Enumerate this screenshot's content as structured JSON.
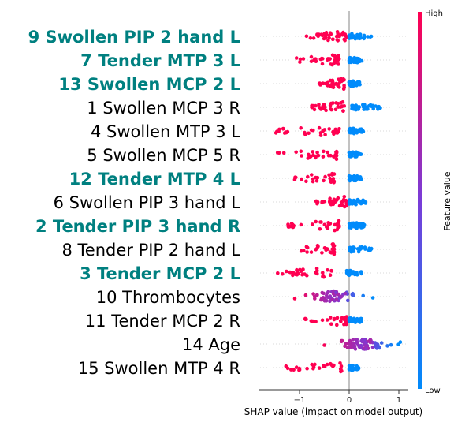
{
  "chart_data": {
    "type": "scatter",
    "subtype": "shap-beeswarm",
    "xlabel": "SHAP value (impact on model output)",
    "xticks": [
      -1,
      0,
      1
    ],
    "xtick_labels": [
      "−1",
      "0",
      "1"
    ],
    "xlim": [
      -1.8,
      1.2
    ],
    "colorbar": {
      "label": "Feature value",
      "high": "High",
      "low": "Low",
      "colors": {
        "high": "#ff0051",
        "low": "#008bfb",
        "mid": "#7a3cd8"
      }
    },
    "highlight_color": "#008080",
    "features": [
      {
        "label": "9 Swollen PIP 2 hand L",
        "highlighted": true,
        "high": {
          "min": -0.9,
          "max": -0.05,
          "n": 40
        },
        "low": {
          "min": 0.0,
          "max": 0.45,
          "n": 36
        }
      },
      {
        "label": "7 Tender MTP 3 L",
        "highlighted": true,
        "high": {
          "min": -1.1,
          "max": -0.2,
          "n": 34
        },
        "low": {
          "min": 0.0,
          "max": 0.3,
          "n": 36
        }
      },
      {
        "label": "13 Swollen MCP 2 L",
        "highlighted": true,
        "high": {
          "min": -0.6,
          "max": -0.1,
          "n": 36
        },
        "low": {
          "min": 0.0,
          "max": 0.25,
          "n": 34
        }
      },
      {
        "label": "1 Swollen MCP 3 R",
        "highlighted": false,
        "high": {
          "min": -0.8,
          "max": -0.1,
          "n": 34
        },
        "low": {
          "min": 0.05,
          "max": 0.7,
          "n": 40
        }
      },
      {
        "label": "4 Swollen MTP 3 L",
        "highlighted": false,
        "high": {
          "min": -1.5,
          "max": -0.2,
          "n": 32
        },
        "low": {
          "min": 0.0,
          "max": 0.3,
          "n": 34
        }
      },
      {
        "label": "5 Swollen MCP 5 R",
        "highlighted": false,
        "high": {
          "min": -1.7,
          "max": -0.25,
          "n": 30
        },
        "low": {
          "min": 0.0,
          "max": 0.25,
          "n": 34
        }
      },
      {
        "label": "12 Tender MTP 4 L",
        "highlighted": true,
        "high": {
          "min": -1.2,
          "max": -0.3,
          "n": 26
        },
        "low": {
          "min": 0.0,
          "max": 0.25,
          "n": 34
        }
      },
      {
        "label": "6 Swollen PIP 3 hand L",
        "highlighted": false,
        "high": {
          "min": -0.75,
          "max": -0.05,
          "n": 34
        },
        "low": {
          "min": 0.0,
          "max": 0.35,
          "n": 36
        }
      },
      {
        "label": "2 Tender PIP 3 hand R",
        "highlighted": true,
        "high": {
          "min": -1.3,
          "max": -0.2,
          "n": 34
        },
        "low": {
          "min": 0.0,
          "max": 0.35,
          "n": 34
        }
      },
      {
        "label": "8 Tender PIP 2 hand L",
        "highlighted": false,
        "high": {
          "min": -1.05,
          "max": -0.3,
          "n": 30
        },
        "low": {
          "min": 0.0,
          "max": 0.45,
          "n": 34
        }
      },
      {
        "label": "3 Tender MCP 2 L",
        "highlighted": true,
        "high": {
          "min": -1.45,
          "max": -0.35,
          "n": 32
        },
        "low": {
          "min": -0.05,
          "max": 0.25,
          "n": 32
        }
      },
      {
        "label": "10 Thrombocytes",
        "highlighted": false,
        "mixed": true,
        "min": -1.1,
        "max": 0.5,
        "n": 60
      },
      {
        "label": "11 Tender MCP 2 R",
        "highlighted": false,
        "high": {
          "min": -0.9,
          "max": -0.05,
          "n": 32
        },
        "low": {
          "min": 0.0,
          "max": 0.3,
          "n": 34
        }
      },
      {
        "label": "14 Age",
        "highlighted": false,
        "mixed": true,
        "min": -0.55,
        "max": 1.05,
        "n": 70
      },
      {
        "label": "15 Swollen MTP 4 R",
        "highlighted": false,
        "high": {
          "min": -1.4,
          "max": -0.15,
          "n": 30
        },
        "low": {
          "min": 0.0,
          "max": 0.2,
          "n": 30
        }
      }
    ]
  }
}
